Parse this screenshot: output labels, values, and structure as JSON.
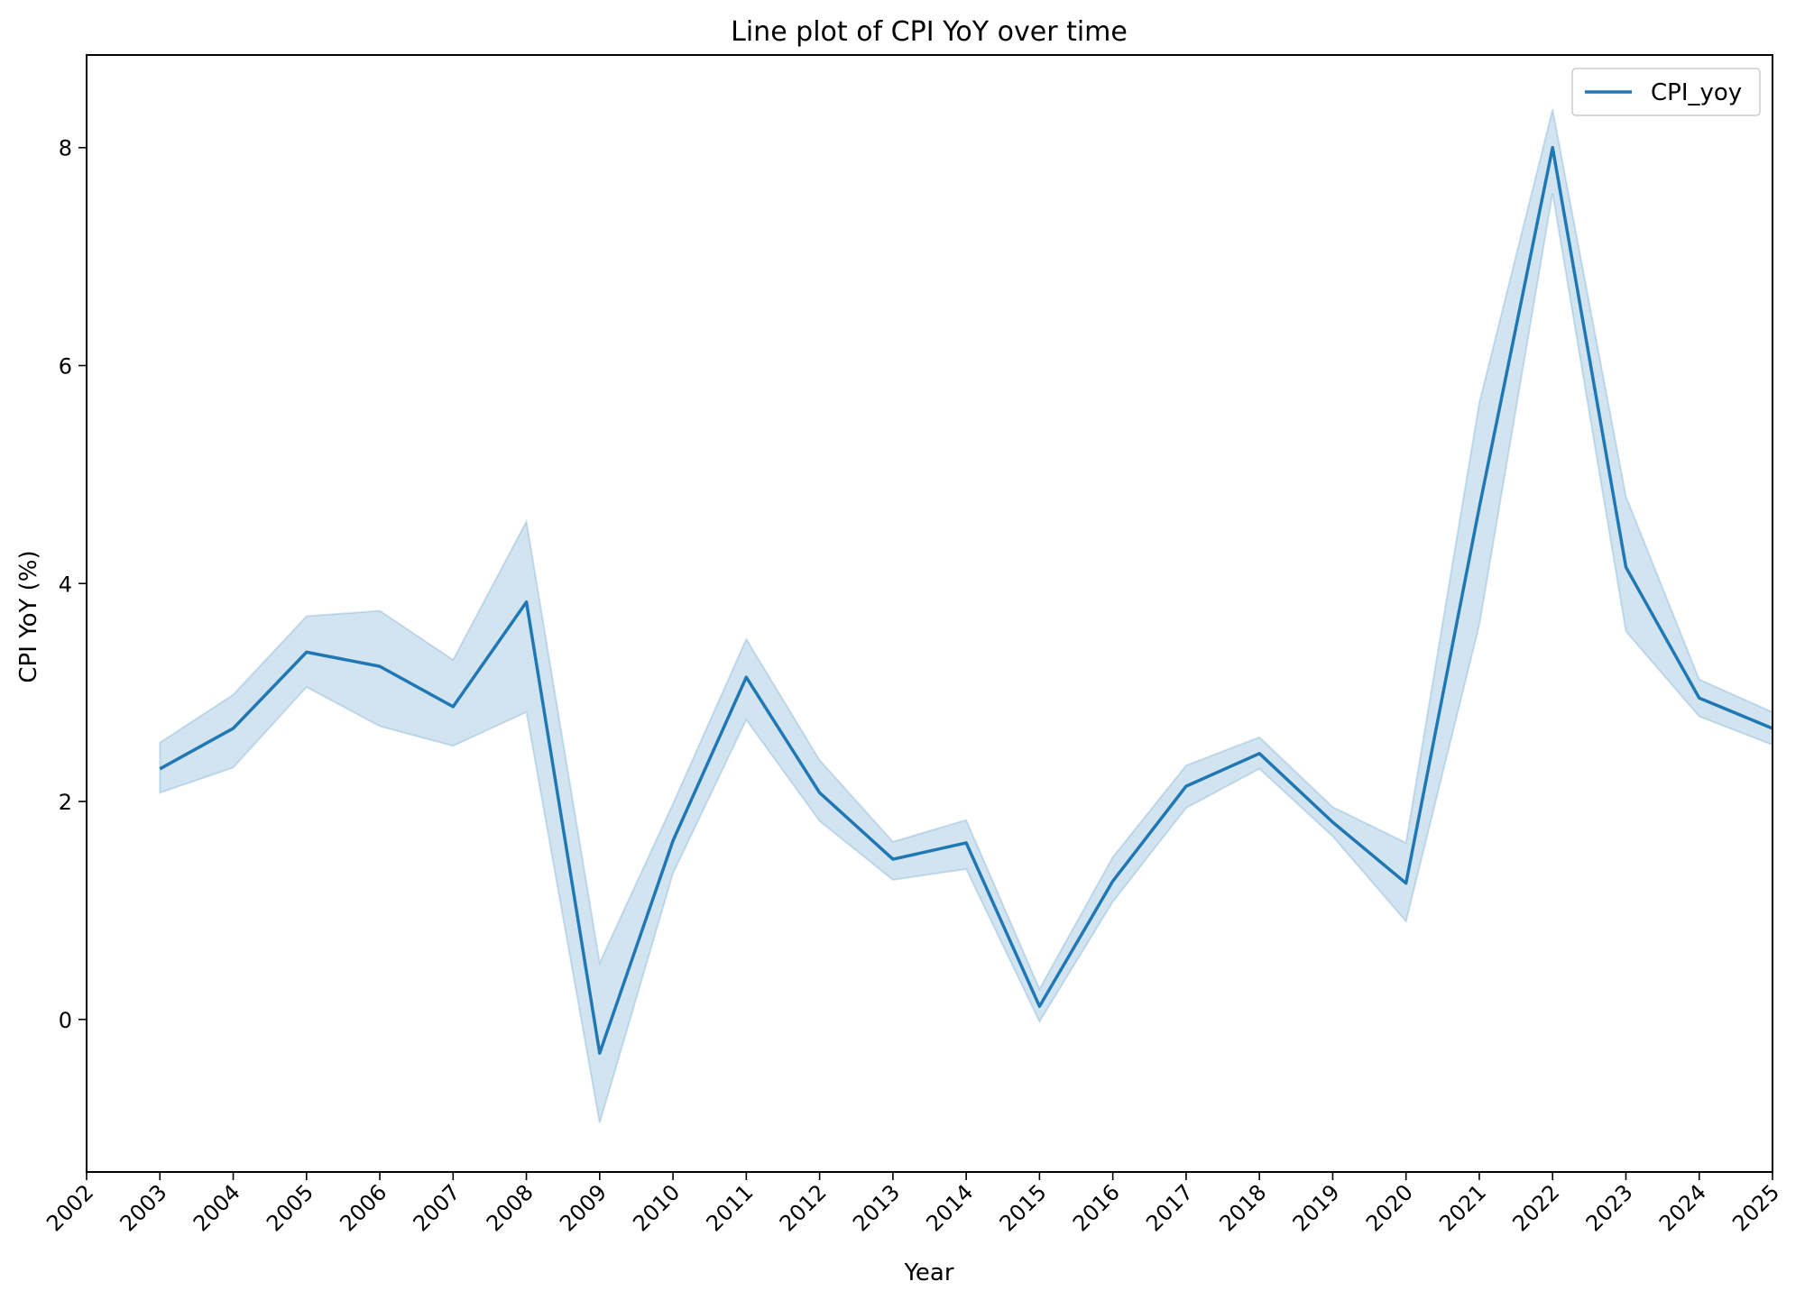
{
  "chart_data": {
    "type": "line",
    "title": "Line plot of CPI YoY over time",
    "xlabel": "Year",
    "ylabel": "CPI YoY (%)",
    "x_ticks": [
      "2002",
      "2003",
      "2004",
      "2005",
      "2006",
      "2007",
      "2008",
      "2009",
      "2010",
      "2011",
      "2012",
      "2013",
      "2014",
      "2015",
      "2016",
      "2017",
      "2018",
      "2019",
      "2020",
      "2021",
      "2022",
      "2023",
      "2024",
      "2025"
    ],
    "y_ticks": [
      "0",
      "2",
      "4",
      "6",
      "8"
    ],
    "xlim": [
      2002,
      2025
    ],
    "ylim": [
      -1.4,
      8.85
    ],
    "grid": false,
    "legend_position": "top-right",
    "series": [
      {
        "name": "CPI_yoy",
        "color": "#1f77b4",
        "band_color": "#1f77b4",
        "x": [
          2003,
          2004,
          2005,
          2006,
          2007,
          2008,
          2009,
          2010,
          2011,
          2012,
          2013,
          2014,
          2015,
          2016,
          2017,
          2018,
          2019,
          2020,
          2021,
          2022,
          2023,
          2024,
          2025
        ],
        "y": [
          2.3,
          2.67,
          3.37,
          3.24,
          2.87,
          3.83,
          -0.31,
          1.64,
          3.14,
          2.08,
          1.47,
          1.62,
          0.12,
          1.27,
          2.14,
          2.44,
          1.81,
          1.25,
          4.7,
          8.0,
          4.15,
          2.95,
          2.67
        ],
        "lower": [
          2.08,
          2.31,
          3.05,
          2.69,
          2.51,
          2.82,
          -0.95,
          1.34,
          2.75,
          1.82,
          1.28,
          1.38,
          -0.02,
          1.08,
          1.94,
          2.3,
          1.68,
          0.9,
          3.62,
          7.58,
          3.56,
          2.78,
          2.52
        ],
        "upper": [
          2.54,
          2.98,
          3.7,
          3.75,
          3.3,
          4.57,
          0.52,
          1.98,
          3.49,
          2.38,
          1.63,
          1.83,
          0.28,
          1.49,
          2.33,
          2.59,
          1.95,
          1.62,
          5.66,
          8.35,
          4.8,
          3.12,
          2.82
        ]
      }
    ]
  }
}
